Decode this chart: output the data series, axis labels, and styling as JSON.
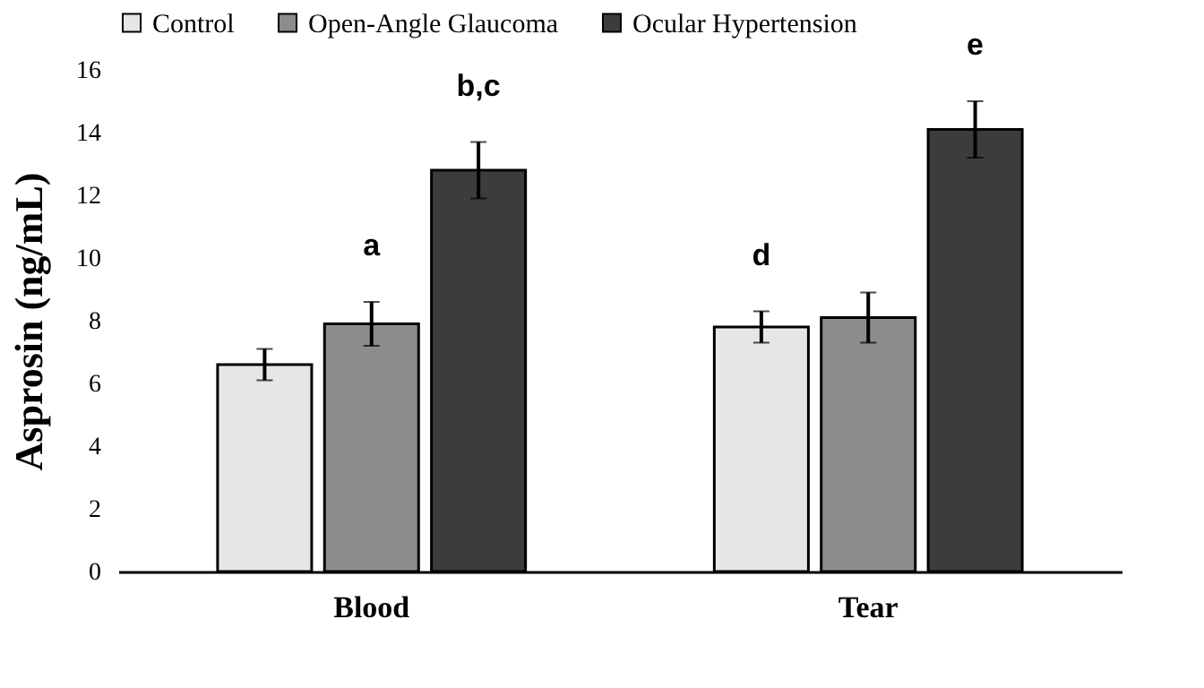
{
  "chart_data": {
    "type": "bar",
    "ylabel": "Asprosin (ng/mL)",
    "categories": [
      "Blood",
      "Tear"
    ],
    "series": [
      {
        "name": "Control",
        "color": "#e6e6e6",
        "values": [
          6.6,
          7.8
        ],
        "errors": [
          0.5,
          0.5
        ],
        "value_labels": [
          null,
          "d"
        ]
      },
      {
        "name": "Open-Angle Glaucoma",
        "color": "#8c8c8c",
        "values": [
          7.9,
          8.1
        ],
        "errors": [
          0.7,
          0.8
        ],
        "value_labels": [
          "a",
          null
        ]
      },
      {
        "name": "Ocular Hypertension",
        "color": "#3c3c3c",
        "values": [
          12.8,
          14.1
        ],
        "errors": [
          0.9,
          0.9
        ],
        "value_labels": [
          "b,c",
          "e"
        ]
      }
    ],
    "ylim": [
      0,
      16
    ],
    "yticks": [
      0,
      2,
      4,
      6,
      8,
      10,
      12,
      14,
      16
    ],
    "grid": false,
    "legend": "top"
  }
}
